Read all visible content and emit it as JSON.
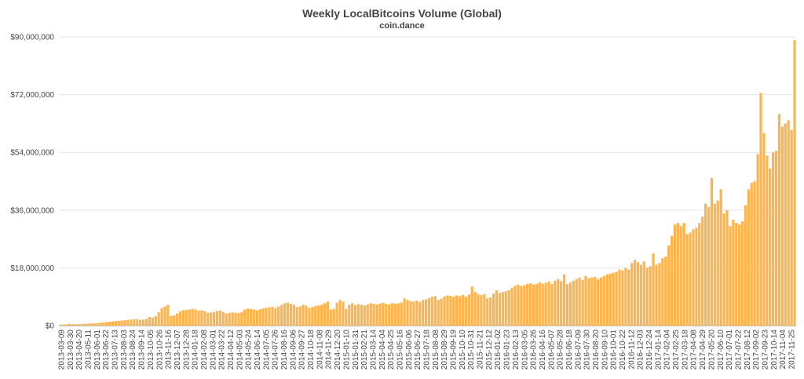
{
  "chart_data": {
    "type": "bar",
    "title": "Weekly LocalBitcoins Volume (Global)",
    "subtitle": "coin.dance",
    "xlabel": "",
    "ylabel": "",
    "ylim": [
      0,
      90000000
    ],
    "y_ticks": [
      0,
      18000000,
      36000000,
      54000000,
      72000000,
      90000000
    ],
    "y_tick_labels": [
      "$0",
      "$18,000,000",
      "$36,000,000",
      "$54,000,000",
      "$72,000,000",
      "$90,000,000"
    ],
    "x_tick_labels": [
      "2013-03-09",
      "2013-03-30",
      "2013-04-20",
      "2013-05-11",
      "2013-06-01",
      "2013-06-22",
      "2013-07-13",
      "2013-08-03",
      "2013-08-24",
      "2013-09-14",
      "2013-10-05",
      "2013-10-26",
      "2013-11-16",
      "2013-12-07",
      "2013-12-28",
      "2014-01-18",
      "2014-02-08",
      "2014-03-01",
      "2014-03-22",
      "2014-04-12",
      "2014-05-03",
      "2014-05-24",
      "2014-06-14",
      "2014-07-05",
      "2014-07-26",
      "2014-08-16",
      "2014-09-06",
      "2014-09-27",
      "2014-10-18",
      "2014-11-08",
      "2014-11-29",
      "2014-12-20",
      "2015-01-10",
      "2015-01-31",
      "2015-02-21",
      "2015-03-14",
      "2015-04-04",
      "2015-04-25",
      "2015-05-16",
      "2015-06-06",
      "2015-06-27",
      "2015-07-18",
      "2015-08-08",
      "2015-08-29",
      "2015-09-19",
      "2015-10-10",
      "2015-10-31",
      "2015-11-21",
      "2015-12-12",
      "2016-01-02",
      "2016-01-23",
      "2016-02-13",
      "2016-03-05",
      "2016-03-26",
      "2016-04-16",
      "2016-05-07",
      "2016-05-28",
      "2016-06-18",
      "2016-07-09",
      "2016-07-30",
      "2016-08-20",
      "2016-09-10",
      "2016-10-01",
      "2016-10-22",
      "2016-11-12",
      "2016-12-03",
      "2016-12-24",
      "2017-01-14",
      "2017-02-04",
      "2017-02-25",
      "2017-03-18",
      "2017-04-08",
      "2017-04-29",
      "2017-05-20",
      "2017-06-10",
      "2017-07-01",
      "2017-07-22",
      "2017-08-12",
      "2017-09-02",
      "2017-09-23",
      "2017-10-14",
      "2017-11-04",
      "2017-11-25"
    ],
    "bar_color": "#fdb44e",
    "grid": "horizontal",
    "series": [
      {
        "values": [
          300000,
          350000,
          400000,
          600000,
          500000,
          450000,
          500000,
          550000,
          600000,
          650000,
          700000,
          750000,
          800000,
          900000,
          1000000,
          1100000,
          1200000,
          1300000,
          1400000,
          1500000,
          1600000,
          1700000,
          1800000,
          1900000,
          2000000,
          2000000,
          1800000,
          1900000,
          2100000,
          2700000,
          2500000,
          3000000,
          4200000,
          5500000,
          6000000,
          6500000,
          3000000,
          3200000,
          3800000,
          4500000,
          4800000,
          4900000,
          5000000,
          5200000,
          5000000,
          4700000,
          4800000,
          4500000,
          4000000,
          4100000,
          4300000,
          4600000,
          4700000,
          4200000,
          3800000,
          4000000,
          4100000,
          4000000,
          3900000,
          4200000,
          5000000,
          5300000,
          5200000,
          5000000,
          4800000,
          5100000,
          5400000,
          5600000,
          5700000,
          5900000,
          5500000,
          6000000,
          6500000,
          7000000,
          7200000,
          6800000,
          6500000,
          5800000,
          6000000,
          6500000,
          6200000,
          5500000,
          5800000,
          6100000,
          6300000,
          6500000,
          7000000,
          7500000,
          5000000,
          5200000,
          7200000,
          8000000,
          7500000,
          5200000,
          6500000,
          7000000,
          6400000,
          6700000,
          6500000,
          6300000,
          6600000,
          7000000,
          6800000,
          6600000,
          6900000,
          7100000,
          6800000,
          6600000,
          7000000,
          6800000,
          7000000,
          7200000,
          8500000,
          8000000,
          7600000,
          7500000,
          7800000,
          7400000,
          8000000,
          8200000,
          8600000,
          9000000,
          9200000,
          8000000,
          8400000,
          9100000,
          9400000,
          9300000,
          9000000,
          9400000,
          9200000,
          9600000,
          9000000,
          9700000,
          12200000,
          10500000,
          9800000,
          9500000,
          9800000,
          8500000,
          8800000,
          10000000,
          11000000,
          10200000,
          10500000,
          10700000,
          11000000,
          11800000,
          12500000,
          12800000,
          12400000,
          12600000,
          13000000,
          13200000,
          12800000,
          13000000,
          13500000,
          13100000,
          13400000,
          13800000,
          13000000,
          14000000,
          14500000,
          13800000,
          16000000,
          13000000,
          13500000,
          14000000,
          14500000,
          15000000,
          14200000,
          15500000,
          14800000,
          15000000,
          15200000,
          14500000,
          15000000,
          15500000,
          16000000,
          16200000,
          16500000,
          16800000,
          17500000,
          17200000,
          18000000,
          17500000,
          19500000,
          20500000,
          19800000,
          19000000,
          20000000,
          18000000,
          18500000,
          22500000,
          19000000,
          19500000,
          21000000,
          21500000,
          25000000,
          28000000,
          31500000,
          32000000,
          31000000,
          32000000,
          28500000,
          29000000,
          30000000,
          30500000,
          32000000,
          34000000,
          38000000,
          37000000,
          46000000,
          38000000,
          39000000,
          42500000,
          35000000,
          36000000,
          31000000,
          33000000,
          32000000,
          31500000,
          32500000,
          37500000,
          42500000,
          44500000,
          45000000,
          53500000,
          72500000,
          60000000,
          53000000,
          49000000,
          54000000,
          54500000,
          66000000,
          62000000,
          63000000,
          64000000,
          61000000,
          89000000
        ]
      }
    ]
  }
}
